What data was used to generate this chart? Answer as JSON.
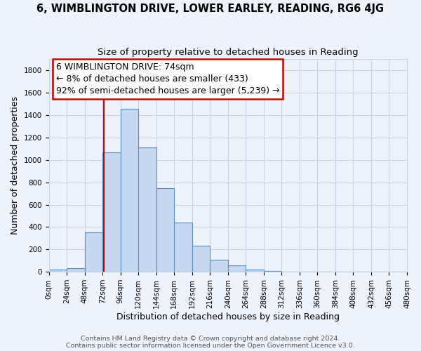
{
  "title": "6, WIMBLINGTON DRIVE, LOWER EARLEY, READING, RG6 4JG",
  "subtitle": "Size of property relative to detached houses in Reading",
  "xlabel": "Distribution of detached houses by size in Reading",
  "ylabel": "Number of detached properties",
  "bar_edges": [
    0,
    24,
    48,
    72,
    96,
    120,
    144,
    168,
    192,
    216,
    240,
    264,
    288,
    312,
    336,
    360,
    384,
    408,
    432,
    456,
    480
  ],
  "bar_heights": [
    20,
    35,
    355,
    1065,
    1460,
    1110,
    745,
    440,
    230,
    110,
    55,
    20,
    5,
    0,
    0,
    0,
    0,
    0,
    0,
    0
  ],
  "bar_color": "#c5d8f0",
  "bar_edge_color": "#5090c8",
  "vline_x": 74,
  "vline_color": "#cc0000",
  "annotation_line1": "6 WIMBLINGTON DRIVE: 74sqm",
  "annotation_line2": "← 8% of detached houses are smaller (433)",
  "annotation_line3": "92% of semi-detached houses are larger (5,239) →",
  "annotation_box_color": "#ffffff",
  "annotation_box_edge_color": "#cc0000",
  "ylim": [
    0,
    1900
  ],
  "yticks": [
    0,
    200,
    400,
    600,
    800,
    1000,
    1200,
    1400,
    1600,
    1800
  ],
  "xtick_labels": [
    "0sqm",
    "24sqm",
    "48sqm",
    "72sqm",
    "96sqm",
    "120sqm",
    "144sqm",
    "168sqm",
    "192sqm",
    "216sqm",
    "240sqm",
    "264sqm",
    "288sqm",
    "312sqm",
    "336sqm",
    "360sqm",
    "384sqm",
    "408sqm",
    "432sqm",
    "456sqm",
    "480sqm"
  ],
  "footer_line1": "Contains HM Land Registry data © Crown copyright and database right 2024.",
  "footer_line2": "Contains public sector information licensed under the Open Government Licence v3.0.",
  "background_color": "#eef2fa",
  "grid_color": "#c8d4e8",
  "title_fontsize": 10.5,
  "subtitle_fontsize": 9.5,
  "axis_label_fontsize": 9,
  "tick_fontsize": 7.5,
  "footer_fontsize": 6.8,
  "annotation_fontsize": 9
}
